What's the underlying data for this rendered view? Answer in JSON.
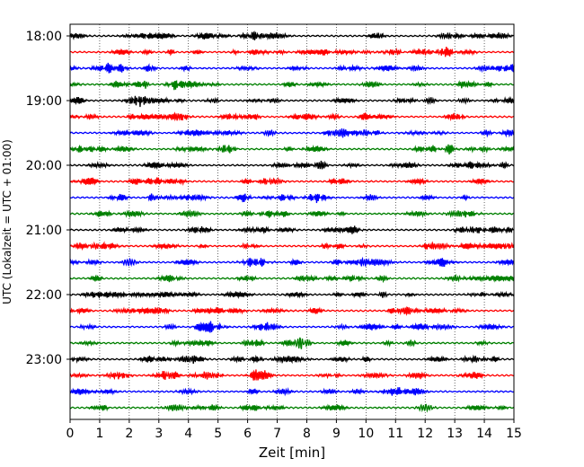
{
  "chart_data": {
    "type": "line",
    "title": "",
    "xlabel": "Zeit  [min]",
    "ylabel": "UTC (Lokalzeit = UTC + 01:00)",
    "xlim": [
      0,
      15
    ],
    "x_ticks": [
      "0",
      "1",
      "2",
      "3",
      "4",
      "5",
      "6",
      "7",
      "8",
      "9",
      "10",
      "11",
      "12",
      "13",
      "14",
      "15"
    ],
    "y_ticks": [
      "18:00",
      "19:00",
      "20:00",
      "21:00",
      "22:00",
      "23:00"
    ],
    "trace_interval_minutes": 15,
    "first_trace": "18:00",
    "last_trace": "23:45",
    "trace_colors": [
      "#000000",
      "#ff0000",
      "#0000ff",
      "#008000"
    ],
    "grid": "vertical dotted lines at each minute",
    "event_markers": [
      {
        "trace": "22:45",
        "minute": 7.8,
        "note": "larger amplitude burst"
      },
      {
        "trace": "21:30",
        "minute": 2.0,
        "note": "moderate burst"
      },
      {
        "trace": "23:45",
        "minute": 12.0,
        "note": "moderate burst"
      }
    ]
  }
}
